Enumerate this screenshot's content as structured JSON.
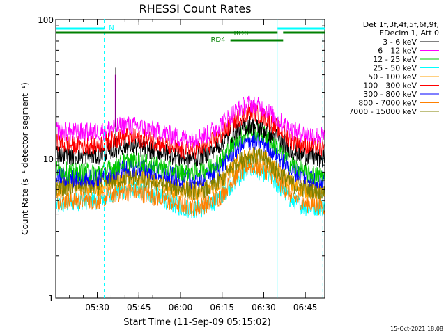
{
  "chart_data": {
    "type": "line",
    "title": "RHESSI Count Rates",
    "xlabel": "Start Time (11-Sep-09 05:15:02)",
    "ylabel": "Count Rate (s⁻¹ detector segment⁻¹)",
    "y_scale": "log",
    "ylim": [
      1,
      100
    ],
    "xlim": [
      "05:15:02",
      "06:52:00"
    ],
    "y_ticks": [
      "1",
      "10",
      "100"
    ],
    "x_ticks": [
      "05:30",
      "05:45",
      "06:00",
      "06:15",
      "06:30",
      "06:45"
    ],
    "legend_header": [
      "Det 1f,3f,4f,5f,6f,9f,",
      "FDecim 1, Att 0"
    ],
    "legend_position": "right",
    "series": [
      {
        "name": "3 - 6 keV",
        "color": "#000000",
        "x": [
          "05:15",
          "05:20",
          "05:25",
          "05:30",
          "05:35",
          "05:40",
          "05:45",
          "05:50",
          "05:55",
          "06:00",
          "06:05",
          "06:10",
          "06:15",
          "06:20",
          "06:25",
          "06:30",
          "06:35",
          "06:40",
          "06:45",
          "06:50"
        ],
        "values": [
          11,
          10.5,
          10.5,
          10.5,
          11.5,
          12.5,
          12,
          11.5,
          11,
          10,
          10,
          11,
          13,
          16,
          17.5,
          16,
          14,
          11.5,
          10.5,
          10
        ]
      },
      {
        "name": "6 - 12 keV",
        "color": "#ff00ff",
        "x": [
          "05:15",
          "05:20",
          "05:25",
          "05:30",
          "05:35",
          "05:40",
          "05:45",
          "05:50",
          "05:55",
          "06:00",
          "06:05",
          "06:10",
          "06:15",
          "06:20",
          "06:25",
          "06:30",
          "06:35",
          "06:40",
          "06:45",
          "06:50"
        ],
        "values": [
          16,
          15.5,
          15.5,
          15.5,
          16.5,
          17.5,
          17,
          16,
          15,
          14,
          14,
          15,
          18,
          22,
          25,
          23,
          19,
          16,
          15,
          14.5
        ]
      },
      {
        "name": "12 - 25 keV",
        "color": "#00c800",
        "x": [
          "05:15",
          "05:20",
          "05:25",
          "05:30",
          "05:35",
          "05:40",
          "05:45",
          "05:50",
          "05:55",
          "06:00",
          "06:05",
          "06:10",
          "06:15",
          "06:20",
          "06:25",
          "06:30",
          "06:35",
          "06:40",
          "06:45",
          "06:50"
        ],
        "values": [
          8.5,
          8,
          8,
          8,
          8.5,
          9.5,
          9.5,
          9,
          8.5,
          8,
          8,
          8.5,
          10,
          13.5,
          16,
          15,
          12,
          9,
          8,
          7.5
        ]
      },
      {
        "name": "25 - 50 keV",
        "color": "#00ffff",
        "x": [
          "05:15",
          "05:20",
          "05:25",
          "05:30",
          "05:35",
          "05:40",
          "05:45",
          "05:50",
          "05:55",
          "06:00",
          "06:05",
          "06:10",
          "06:15",
          "06:20",
          "06:25",
          "06:30",
          "06:35",
          "06:40",
          "06:45",
          "06:50"
        ],
        "values": [
          4.6,
          4.8,
          5,
          5,
          5.5,
          6,
          6,
          5.5,
          5,
          4.5,
          4.3,
          4.5,
          5.5,
          7,
          8.5,
          8,
          6.5,
          5,
          4.5,
          4.5
        ]
      },
      {
        "name": "50 - 100 keV",
        "color": "#ffa000",
        "x": [
          "05:15",
          "05:20",
          "05:25",
          "05:30",
          "05:35",
          "05:40",
          "05:45",
          "05:50",
          "05:55",
          "06:00",
          "06:05",
          "06:10",
          "06:15",
          "06:20",
          "06:25",
          "06:30",
          "06:35",
          "06:40",
          "06:45",
          "06:50"
        ],
        "values": [
          6,
          6.2,
          6.3,
          6.3,
          6.8,
          7.3,
          7.2,
          6.8,
          6.3,
          6,
          5.8,
          6,
          7,
          9,
          10.5,
          10,
          8,
          6.5,
          6,
          5.8
        ]
      },
      {
        "name": "100 - 300 keV",
        "color": "#ff0000",
        "x": [
          "05:15",
          "05:20",
          "05:25",
          "05:30",
          "05:35",
          "05:40",
          "05:45",
          "05:50",
          "05:55",
          "06:00",
          "06:05",
          "06:10",
          "06:15",
          "06:20",
          "06:25",
          "06:30",
          "06:35",
          "06:40",
          "06:45",
          "06:50"
        ],
        "values": [
          13,
          12.5,
          12.5,
          12.5,
          13.5,
          14.5,
          14,
          13.5,
          12.5,
          11.5,
          11.5,
          12.5,
          15,
          19,
          22,
          20,
          16.5,
          13.5,
          12.5,
          12
        ]
      },
      {
        "name": "300 - 800 keV",
        "color": "#0000ff",
        "x": [
          "05:15",
          "05:20",
          "05:25",
          "05:30",
          "05:35",
          "05:40",
          "05:45",
          "05:50",
          "05:55",
          "06:00",
          "06:05",
          "06:10",
          "06:15",
          "06:20",
          "06:25",
          "06:30",
          "06:35",
          "06:40",
          "06:45",
          "06:50"
        ],
        "values": [
          7.5,
          7.2,
          7.2,
          7.3,
          7.8,
          8.6,
          8.6,
          8.2,
          7.7,
          7.2,
          7,
          7.5,
          9,
          11.5,
          13.5,
          13,
          10.5,
          8.3,
          7.4,
          7
        ]
      },
      {
        "name": "800 - 7000 keV",
        "color": "#ff8000",
        "x": [
          "05:15",
          "05:20",
          "05:25",
          "05:30",
          "05:35",
          "05:40",
          "05:45",
          "05:50",
          "05:55",
          "06:00",
          "06:05",
          "06:10",
          "06:15",
          "06:20",
          "06:25",
          "06:30",
          "06:35",
          "06:40",
          "06:45",
          "06:50"
        ],
        "values": [
          5,
          5,
          5,
          5,
          5.5,
          5.8,
          5.7,
          5.4,
          5,
          4.7,
          4.5,
          4.7,
          5.5,
          7.5,
          9,
          8.5,
          7,
          5.4,
          4.8,
          4.6
        ]
      },
      {
        "name": "7000 - 15000 keV",
        "color": "#808000",
        "x": [
          "05:15",
          "05:20",
          "05:25",
          "05:30",
          "05:35",
          "05:40",
          "05:45",
          "05:50",
          "05:55",
          "06:00",
          "06:05",
          "06:10",
          "06:15",
          "06:20",
          "06:25",
          "06:30",
          "06:35",
          "06:40",
          "06:45",
          "06:50"
        ],
        "values": [
          6.3,
          6.3,
          6.4,
          6.4,
          6.9,
          7.4,
          7.3,
          6.9,
          6.4,
          6.1,
          5.9,
          6.1,
          7.1,
          9.1,
          10.6,
          10.1,
          8.1,
          6.6,
          6.1,
          5.9
        ]
      }
    ],
    "state_bars": [
      {
        "label": "N",
        "color": "#00ffff",
        "segments": [
          [
            "05:15:02",
            "05:32:30"
          ],
          [
            "06:35:00",
            "06:52:00"
          ]
        ]
      },
      {
        "label": "RD0",
        "color": "#008000",
        "segments": [
          [
            "05:15:02",
            "06:35:00"
          ],
          [
            "06:37:00",
            "06:52:00"
          ]
        ]
      },
      {
        "label": "RD4",
        "color": "#008000",
        "segments": [
          [
            "06:18:00",
            "06:37:00"
          ]
        ]
      }
    ],
    "vertical_markers": [
      {
        "x": "05:32:30",
        "style": "dashed",
        "color": "#00ffff"
      },
      {
        "x": "06:34:50",
        "style": "solid",
        "color": "#00ffff"
      },
      {
        "x": "06:51:20",
        "style": "dashed",
        "color": "#00ffff"
      }
    ],
    "spikes": [
      {
        "series": "3 - 6 keV",
        "x": "05:15:10",
        "value": 30
      },
      {
        "series": "6 - 12 keV",
        "x": "05:36:30",
        "value": 40
      },
      {
        "series": "3 - 6 keV",
        "x": "05:36:40",
        "value": 45
      }
    ]
  },
  "footer_timestamp": "15-Oct-2021 18:08"
}
